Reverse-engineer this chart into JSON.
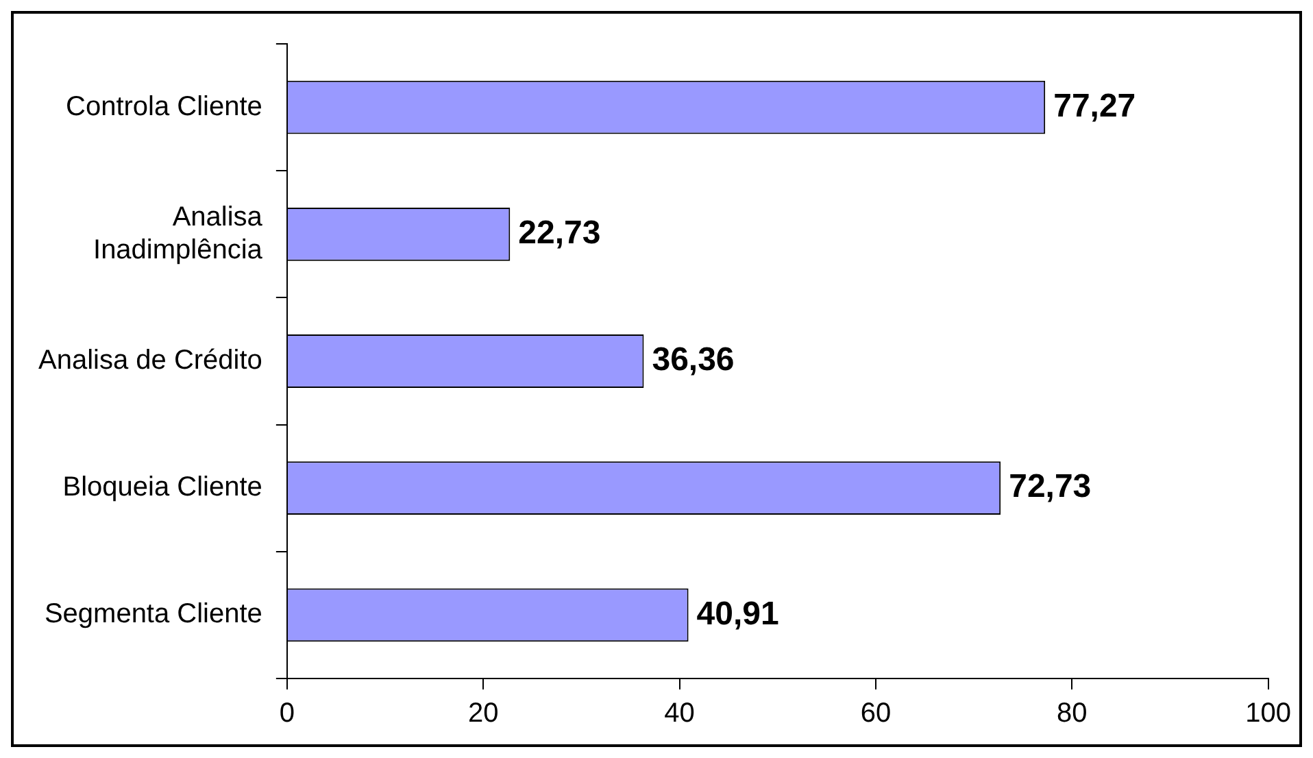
{
  "chart_data": {
    "type": "bar",
    "orientation": "horizontal",
    "categories": [
      "Controla Cliente",
      "Analisa Inadimplência",
      "Analisa de Crédito",
      "Bloqueia Cliente",
      "Segmenta Cliente"
    ],
    "values": [
      77.27,
      22.73,
      36.36,
      72.73,
      40.91
    ],
    "value_labels": [
      "77,27",
      "22,73",
      "36,36",
      "72,73",
      "40,91"
    ],
    "color": "#9999ff",
    "xlim": [
      0,
      100
    ],
    "xticks": [
      0,
      20,
      40,
      60,
      80,
      100
    ],
    "grid": false,
    "legend": false
  }
}
